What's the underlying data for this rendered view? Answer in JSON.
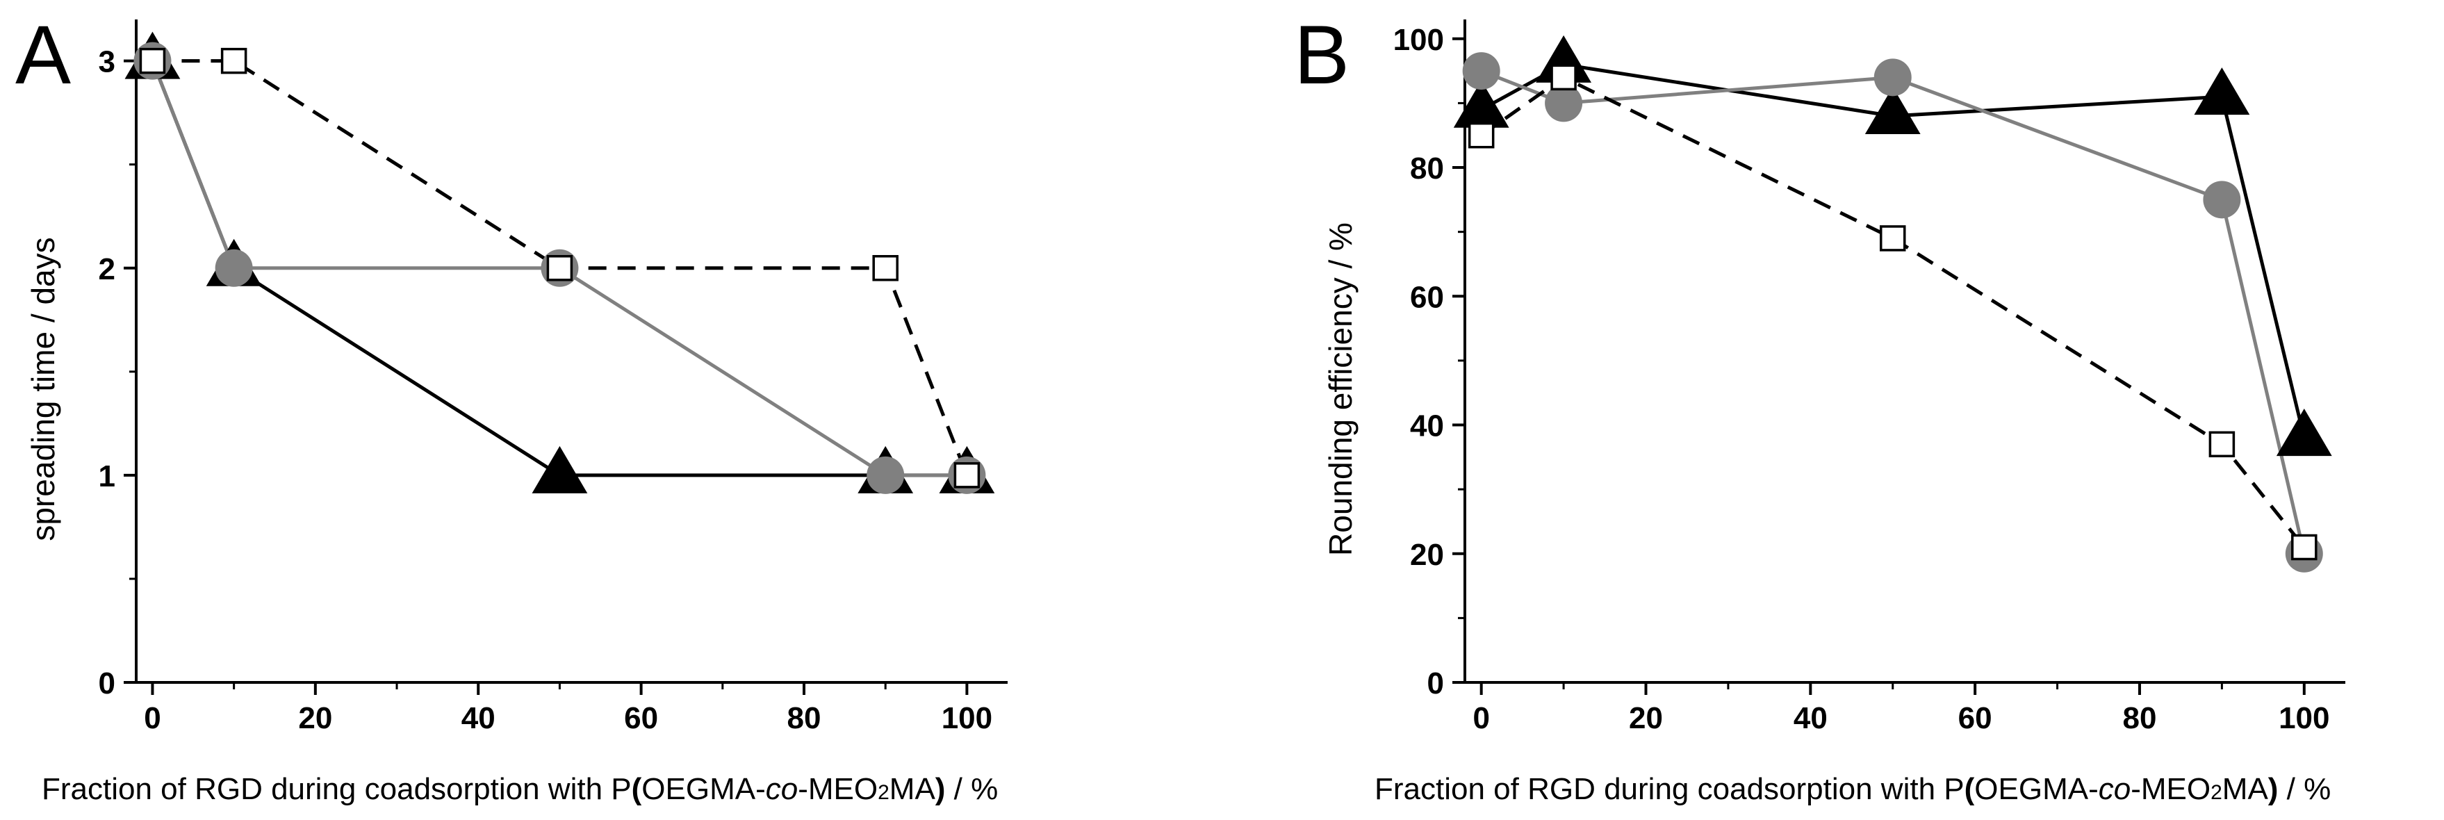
{
  "figure": {
    "panels": [
      "A",
      "B"
    ],
    "xlabel_parts": {
      "pre": "Fraction of RGD during coadsorption with P",
      "open": "(",
      "mid1": "OEGMA-",
      "co": "co",
      "mid2": "-MEO",
      "sub": "2",
      "mid3": "MA",
      "close": ")",
      "post": " / %"
    }
  },
  "colors": {
    "triangle": "#000000",
    "circle": "#808080",
    "square_fill": "#ffffff",
    "square_edge": "#000000",
    "axis": "#000000"
  },
  "chart_data": [
    {
      "panel": "A",
      "type": "line",
      "xlabel": "Fraction of RGD during coadsorption with P(OEGMA-co-MEO2MA) / %",
      "ylabel": "spreading time / days",
      "xlim": [
        -2,
        105
      ],
      "ylim": [
        0,
        3.2
      ],
      "xticks": [
        0,
        20,
        40,
        60,
        80,
        100
      ],
      "yticks": [
        0,
        1,
        2,
        3
      ],
      "grid": false,
      "series": [
        {
          "marker": "triangle",
          "line": "solid",
          "color": "#000000",
          "x": [
            0,
            10,
            50,
            90,
            100
          ],
          "y": [
            3,
            2,
            1,
            1,
            1
          ]
        },
        {
          "marker": "circle",
          "line": "solid",
          "color": "#808080",
          "x": [
            0,
            10,
            50,
            90,
            100
          ],
          "y": [
            3,
            2,
            2,
            1,
            1
          ]
        },
        {
          "marker": "open-square",
          "line": "dashed",
          "color": "#000000",
          "x": [
            0,
            10,
            50,
            90,
            100
          ],
          "y": [
            3,
            3,
            2,
            2,
            1
          ]
        }
      ]
    },
    {
      "panel": "B",
      "type": "line",
      "xlabel": "Fraction of RGD during coadsorption with P(OEGMA-co-MEO2MA) / %",
      "ylabel": "Rounding efficiency / %",
      "xlim": [
        -2,
        105
      ],
      "ylim": [
        0,
        103
      ],
      "xticks": [
        0,
        20,
        40,
        60,
        80,
        100
      ],
      "yticks": [
        0,
        20,
        40,
        60,
        80,
        100
      ],
      "grid": false,
      "series": [
        {
          "marker": "triangle",
          "line": "solid",
          "color": "#000000",
          "x": [
            0,
            10,
            50,
            90,
            100
          ],
          "y": [
            89,
            96,
            88,
            91,
            38
          ]
        },
        {
          "marker": "circle",
          "line": "solid",
          "color": "#808080",
          "x": [
            0,
            10,
            50,
            90,
            100
          ],
          "y": [
            95,
            90,
            94,
            75,
            20
          ]
        },
        {
          "marker": "open-square",
          "line": "dashed",
          "color": "#000000",
          "x": [
            0,
            10,
            50,
            90,
            100
          ],
          "y": [
            85,
            94,
            69,
            37,
            21
          ]
        }
      ]
    }
  ]
}
